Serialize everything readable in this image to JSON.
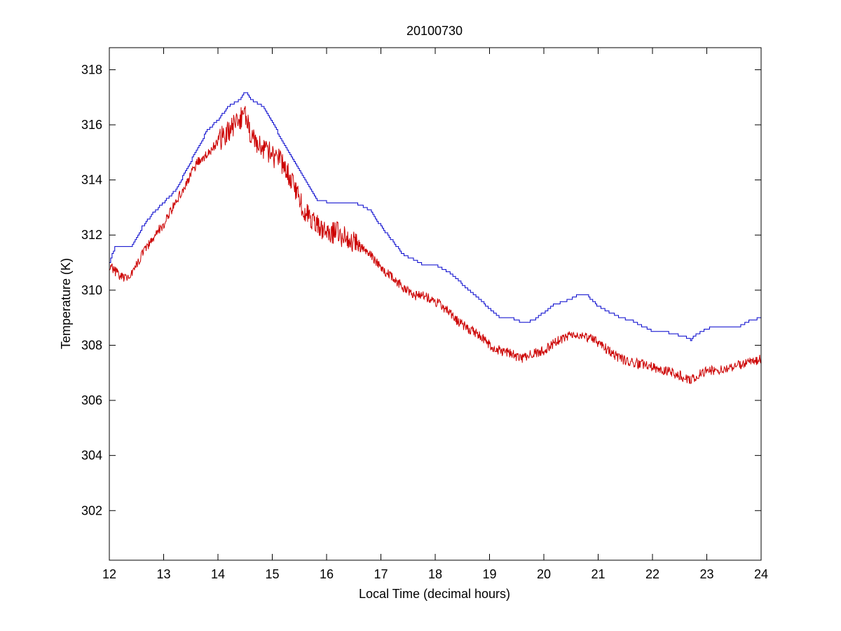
{
  "chart_data": {
    "type": "line",
    "title": "20100730",
    "xlabel": "Local Time (decimal hours)",
    "ylabel": "Temperature (K)",
    "xlim": [
      12,
      24
    ],
    "ylim": [
      300.2,
      318.8
    ],
    "xticks": [
      12,
      13,
      14,
      15,
      16,
      17,
      18,
      19,
      20,
      21,
      22,
      23,
      24
    ],
    "yticks": [
      302,
      304,
      306,
      308,
      310,
      312,
      314,
      316,
      318
    ],
    "grid": false,
    "legend": "none",
    "series": [
      {
        "color": "#0000cc",
        "style": "stepped",
        "x": [
          12.0,
          12.1,
          12.2,
          12.4,
          12.5,
          12.6,
          12.8,
          13.0,
          13.2,
          13.4,
          13.6,
          13.8,
          14.0,
          14.2,
          14.4,
          14.5,
          14.6,
          14.8,
          15.0,
          15.2,
          15.4,
          15.6,
          15.8,
          16.0,
          16.2,
          16.4,
          16.6,
          16.8,
          17.0,
          17.2,
          17.4,
          17.6,
          17.8,
          18.0,
          18.2,
          18.4,
          18.6,
          18.8,
          19.0,
          19.2,
          19.4,
          19.6,
          19.8,
          20.0,
          20.2,
          20.4,
          20.6,
          20.8,
          21.0,
          21.2,
          21.4,
          21.6,
          21.8,
          22.0,
          22.2,
          22.4,
          22.6,
          22.7,
          22.8,
          23.0,
          23.2,
          23.4,
          23.6,
          23.8,
          24.0
        ],
        "y": [
          311.0,
          311.6,
          311.6,
          311.6,
          311.9,
          312.3,
          312.8,
          313.2,
          313.6,
          314.3,
          315.1,
          315.8,
          316.2,
          316.7,
          316.9,
          317.2,
          316.9,
          316.7,
          316.1,
          315.3,
          314.7,
          314.0,
          313.3,
          313.2,
          313.2,
          313.2,
          313.1,
          312.9,
          312.3,
          311.8,
          311.3,
          311.1,
          310.9,
          310.9,
          310.7,
          310.4,
          310.0,
          309.7,
          309.3,
          309.0,
          309.0,
          308.8,
          308.9,
          309.2,
          309.5,
          309.6,
          309.8,
          309.8,
          309.4,
          309.2,
          309.0,
          308.9,
          308.7,
          308.5,
          308.5,
          308.4,
          308.3,
          308.2,
          308.4,
          308.6,
          308.7,
          308.7,
          308.7,
          308.9,
          309.0
        ]
      },
      {
        "color": "#cc0000",
        "style": "noisy",
        "x": [
          12.0,
          12.1,
          12.2,
          12.3,
          12.4,
          12.6,
          12.8,
          13.0,
          13.2,
          13.4,
          13.6,
          13.8,
          14.0,
          14.2,
          14.4,
          14.5,
          14.6,
          14.8,
          15.0,
          15.2,
          15.4,
          15.6,
          15.8,
          16.0,
          16.2,
          16.4,
          16.6,
          16.8,
          17.0,
          17.2,
          17.4,
          17.6,
          17.8,
          18.0,
          18.2,
          18.4,
          18.6,
          18.8,
          19.0,
          19.2,
          19.4,
          19.6,
          19.8,
          20.0,
          20.2,
          20.4,
          20.6,
          20.8,
          21.0,
          21.2,
          21.4,
          21.6,
          21.8,
          22.0,
          22.2,
          22.4,
          22.6,
          22.7,
          22.8,
          23.0,
          23.2,
          23.4,
          23.6,
          23.8,
          24.0
        ],
        "y": [
          310.9,
          310.7,
          310.5,
          310.4,
          310.6,
          311.3,
          311.9,
          312.4,
          313.1,
          313.8,
          314.6,
          314.9,
          315.4,
          315.8,
          316.2,
          316.4,
          315.7,
          315.2,
          314.9,
          314.6,
          313.7,
          312.8,
          312.4,
          312.0,
          312.1,
          311.8,
          311.6,
          311.3,
          310.8,
          310.5,
          310.1,
          309.8,
          309.8,
          309.6,
          309.3,
          308.9,
          308.6,
          308.4,
          308.0,
          307.8,
          307.7,
          307.5,
          307.7,
          307.8,
          308.1,
          308.3,
          308.4,
          308.3,
          308.1,
          307.8,
          307.5,
          307.4,
          307.3,
          307.2,
          307.1,
          307.0,
          306.8,
          306.7,
          306.9,
          307.1,
          307.1,
          307.2,
          307.3,
          307.4,
          307.5
        ]
      }
    ]
  }
}
